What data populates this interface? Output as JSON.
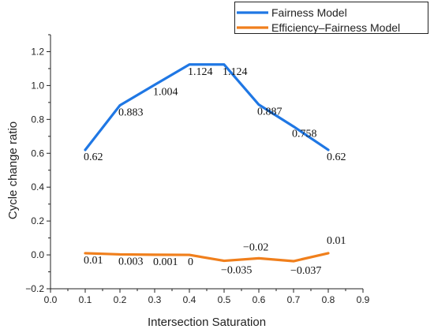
{
  "chart_data": {
    "type": "line",
    "xlabel": "Intersection Saturation",
    "ylabel": "Cycle change ratio",
    "xlim": [
      0.0,
      0.9
    ],
    "ylim": [
      -0.2,
      1.3
    ],
    "x_ticks": [
      "0.0",
      "0.1",
      "0.2",
      "0.3",
      "0.4",
      "0.5",
      "0.6",
      "0.7",
      "0.8",
      "0.9"
    ],
    "y_ticks": [
      "-0.2",
      "0.0",
      "0.2",
      "0.4",
      "0.6",
      "0.8",
      "1.0",
      "1.2"
    ],
    "grid": false,
    "legend_position": "top-right",
    "x": [
      0.1,
      0.2,
      0.3,
      0.4,
      0.5,
      0.6,
      0.7,
      0.8
    ],
    "series": [
      {
        "name": "Fairness Model",
        "color": "#1f77e4",
        "values": [
          0.62,
          0.883,
          1.004,
          1.124,
          1.124,
          0.887,
          0.758,
          0.62
        ],
        "labels": [
          "0.62",
          "0.883",
          "1.004",
          "1.124",
          "1.124",
          "0.887",
          "0.758",
          "0.62"
        ]
      },
      {
        "name": "Efficiency–Fairness Model",
        "color": "#f07f1c",
        "values": [
          0.01,
          0.003,
          0.001,
          0.0,
          -0.035,
          -0.02,
          -0.037,
          0.01
        ],
        "labels": [
          "0.01",
          "0.003",
          "0.001",
          "0",
          "−0.035",
          "−0.02",
          "−0.037",
          "0.01"
        ]
      }
    ]
  }
}
